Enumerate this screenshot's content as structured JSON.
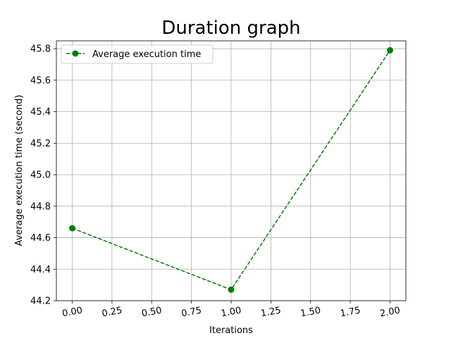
{
  "chart_data": {
    "type": "line",
    "title": "Duration graph",
    "xlabel": "Iterations",
    "ylabel": "Average execution time (second)",
    "xlim": [
      -0.1,
      2.1
    ],
    "ylim": [
      44.2,
      45.85
    ],
    "xticks": [
      0.0,
      0.25,
      0.5,
      0.75,
      1.0,
      1.25,
      1.5,
      1.75,
      2.0
    ],
    "xtick_labels": [
      "0.00",
      "0.25",
      "0.50",
      "0.75",
      "1.00",
      "1.25",
      "1.50",
      "1.75",
      "2.00"
    ],
    "yticks": [
      44.2,
      44.4,
      44.6,
      44.8,
      45.0,
      45.2,
      45.4,
      45.6,
      45.8
    ],
    "ytick_labels": [
      "44.2",
      "44.4",
      "44.6",
      "44.8",
      "45.0",
      "45.2",
      "45.4",
      "45.6",
      "45.8"
    ],
    "grid": true,
    "legend_position": "top-left",
    "series": [
      {
        "name": "Average execution time",
        "color": "#008000",
        "line_style": "dashed",
        "marker": "circle",
        "x": [
          0,
          1,
          2
        ],
        "y": [
          44.66,
          44.27,
          45.79
        ]
      }
    ]
  }
}
